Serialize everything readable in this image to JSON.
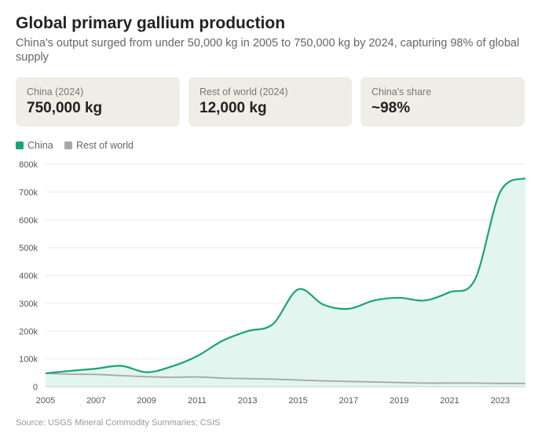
{
  "header": {
    "title": "Global primary gallium production",
    "subtitle": "China's output surged from under 50,000 kg in 2005 to 750,000 kg by 2024, capturing 98% of global supply"
  },
  "cards": [
    {
      "label": "China (2024)",
      "value": "750,000 kg"
    },
    {
      "label": "Rest of world (2024)",
      "value": "12,000 kg"
    },
    {
      "label": "China's share",
      "value": "~98%"
    }
  ],
  "colors": {
    "china": "#1aa37a",
    "china_fill": "#e2f5ee",
    "rest": "#a8a89e",
    "grid": "#ebebeb",
    "axis": "#cccccc",
    "tick": "#555555"
  },
  "chart_data": {
    "type": "area",
    "title": "Global primary gallium production",
    "xlabel": "",
    "ylabel": "",
    "xlim": [
      2005,
      2024
    ],
    "ylim": [
      0,
      800000
    ],
    "x": [
      2005,
      2006,
      2007,
      2008,
      2009,
      2010,
      2011,
      2012,
      2013,
      2014,
      2015,
      2016,
      2017,
      2018,
      2019,
      2020,
      2021,
      2022,
      2023,
      2024
    ],
    "series": [
      {
        "name": "China",
        "values": [
          48000,
          57000,
          65000,
          75000,
          52000,
          73000,
          110000,
          165000,
          200000,
          225000,
          350000,
          295000,
          280000,
          310000,
          320000,
          310000,
          340000,
          385000,
          700000,
          750000
        ]
      },
      {
        "name": "Rest of world",
        "values": [
          48000,
          45000,
          44000,
          40000,
          36000,
          34000,
          35000,
          31000,
          29000,
          27000,
          24000,
          21000,
          19000,
          17000,
          15000,
          13000,
          13000,
          13000,
          12000,
          12000
        ]
      }
    ],
    "y_ticks": [
      0,
      100000,
      200000,
      300000,
      400000,
      500000,
      600000,
      700000,
      800000
    ],
    "y_tick_labels": [
      "0",
      "100k",
      "200k",
      "300k",
      "400k",
      "500k",
      "600k",
      "700k",
      "800k"
    ],
    "x_ticks": [
      2005,
      2007,
      2009,
      2011,
      2013,
      2015,
      2017,
      2019,
      2021,
      2023
    ],
    "x_tick_labels": [
      "2005",
      "2007",
      "2009",
      "2011",
      "2013",
      "2015",
      "2017",
      "2019",
      "2021",
      "2023"
    ],
    "legend": [
      "China",
      "Rest of world"
    ],
    "legend_position": "top-left",
    "grid": true
  },
  "footer": {
    "source": "Source: USGS Mineral Commodity Summaries; CSIS"
  }
}
